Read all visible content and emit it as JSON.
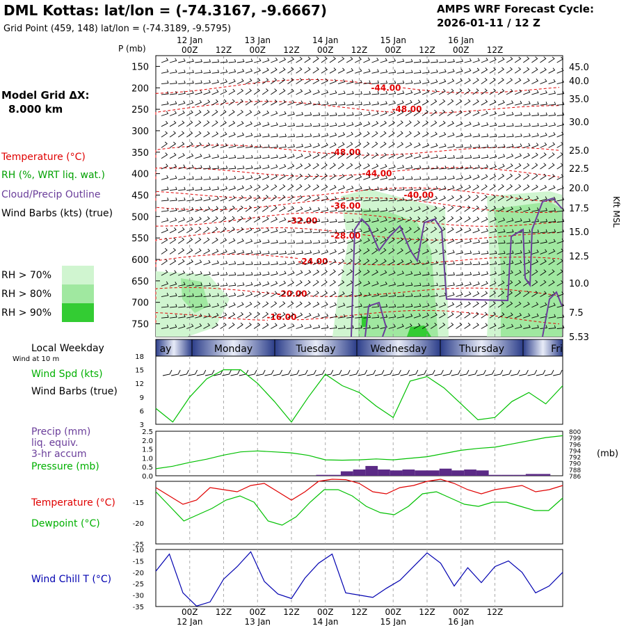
{
  "header": {
    "station_title": "DML Kottas:  lat/lon = (-74.3167, -9.6667)",
    "grid_point": "Grid Point (459, 148) lat/lon = (-74.3189, -9.5795)",
    "forecast_line1": "AMPS WRF Forecast Cycle:",
    "forecast_line2": "2026-01-11 / 12  Z"
  },
  "left_panel": {
    "model_grid_label": "Model Grid ΔX:",
    "model_grid_value": "8.000 km",
    "temperature_label": "Temperature (°C)",
    "rh_label": "RH (%, WRT liq. wat.)",
    "cloud_label": "Cloud/Precip Outline",
    "windbarb_label": "Wind Barbs (kts) (true)",
    "rh_legend": [
      "RH > 70%",
      "RH > 80%",
      "RH > 90%"
    ],
    "local_weekday_label": "Local Weekday",
    "wind_10m_label": "Wind at 10 m",
    "wind_spd_label": "Wind Spd (kts)",
    "wind_barbs_label": "Wind Barbs (true)",
    "precip_label_1": "Precip (mm)",
    "precip_label_2": "liq. equiv.",
    "precip_label_3": "3-hr accum",
    "pressure_label": "Pressure (mb)",
    "temp_label": "Temperature (°C)",
    "dewpoint_label": "Dewpoint (°C)",
    "windchill_label": "Wind Chill T (°C)"
  },
  "colors": {
    "temperature": "#e00000",
    "dewpoint": "#00c000",
    "rh": "#00b000",
    "cloud": "#6a3d9a",
    "windchill": "#0000b0",
    "precip": "#5b2a86",
    "rh70": "#d0f5d0",
    "rh80": "#a0e8a0",
    "rh90": "#33cc33"
  },
  "chart_data": [
    {
      "type": "cross-section",
      "title": "Vertical time section",
      "ylabel": "P (mb)",
      "y2label": "Kft MSL",
      "pressure_ticks": [
        150,
        200,
        250,
        300,
        350,
        400,
        450,
        500,
        550,
        600,
        650,
        700,
        750
      ],
      "kft_ticks": [
        "45.0",
        "40.0",
        "35.0",
        "30.0",
        "25.0",
        "22.5",
        "20.0",
        "17.5",
        "15.0",
        "12.5",
        "10.0",
        "7.5",
        "5.53"
      ],
      "top_time_ticks": [
        "00Z",
        "12Z",
        "00Z",
        "12Z",
        "00Z",
        "12Z",
        "00Z",
        "12Z",
        "00Z",
        "12Z"
      ],
      "top_date_labels": [
        "12 Jan",
        "13 Jan",
        "14 Jan",
        "15 Jan",
        "16 Jan"
      ],
      "plabel": "P (mb)",
      "temperature_contours": [
        {
          "label": "-44.00",
          "p": 200
        },
        {
          "label": "-48.00",
          "p": 250
        },
        {
          "label": "-48.00",
          "p": 350
        },
        {
          "label": "-44.00",
          "p": 400
        },
        {
          "label": "-40.00",
          "p": 450
        },
        {
          "label": "-36.00",
          "p": 475
        },
        {
          "label": "-32.00",
          "p": 510
        },
        {
          "label": "-28.00",
          "p": 545
        },
        {
          "label": "-24.00",
          "p": 605
        },
        {
          "label": "-20.00",
          "p": 680
        },
        {
          "label": "-16.00",
          "p": 735
        }
      ]
    },
    {
      "type": "line",
      "title": "Wind Spd (kts)",
      "ylim": [
        3,
        18
      ],
      "yticks": [
        "18",
        "15",
        "12",
        "9",
        "6",
        "3"
      ],
      "x_hours": [
        0,
        6,
        12,
        18,
        24,
        30,
        36,
        42,
        48,
        54,
        60,
        66,
        72,
        78,
        84,
        90,
        96,
        102,
        108,
        114,
        120,
        126,
        132,
        138,
        144
      ],
      "values": [
        6.5,
        3.5,
        9,
        13,
        15,
        15,
        12,
        8,
        3.5,
        9,
        14,
        11.5,
        10,
        7,
        4.5,
        12.5,
        13.5,
        11,
        7.5,
        4,
        4.5,
        8,
        10,
        7.5,
        11.5
      ],
      "weekdays": [
        "ay",
        "Monday",
        "Tuesday",
        "Wednesday",
        "Thursday",
        "Fri"
      ]
    },
    {
      "type": "bar+line",
      "title": "Precip / Pressure",
      "precip_ylim": [
        0,
        2.5
      ],
      "precip_ticks": [
        "2.5",
        "2.0",
        "1.5",
        "1.0",
        "0.5",
        "0.0"
      ],
      "pressure_ticks": [
        "800",
        "799",
        "796",
        "794",
        "792",
        "790",
        "788",
        "786"
      ],
      "pressure_unit": "(mb)",
      "precip_values": [
        0,
        0,
        0,
        0,
        0,
        0,
        0,
        0,
        0,
        0,
        0,
        0,
        0,
        0.05,
        0.05,
        0.25,
        0.35,
        0.55,
        0.35,
        0.3,
        0.35,
        0.3,
        0.3,
        0.4,
        0.3,
        0.35,
        0.3,
        0.05,
        0.05,
        0.05,
        0.1,
        0.1,
        0
      ],
      "pressure_values": [
        788.2,
        789,
        790.2,
        791.2,
        792.5,
        793.5,
        793.8,
        793.5,
        793.2,
        792.4,
        791,
        790.9,
        791,
        791.3,
        791,
        791.5,
        792,
        793,
        794,
        794.6,
        795,
        796,
        797,
        798,
        798.6
      ]
    },
    {
      "type": "line",
      "title": "Temperature / Dewpoint",
      "ylim": [
        -25,
        -10
      ],
      "yticks": [
        "-15",
        "-20",
        "-25"
      ],
      "temperature": [
        -11.5,
        -13.5,
        -15.5,
        -14.5,
        -11.5,
        -12,
        -12.5,
        -11,
        -10.5,
        -12.5,
        -14.5,
        -12.5,
        -10,
        -9.5,
        -9.6,
        -10.5,
        -12.5,
        -13,
        -11.5,
        -11,
        -10,
        -9.5,
        -10.5,
        -12,
        -13,
        -12,
        -11.5,
        -11,
        -12.5,
        -12,
        -11
      ],
      "dewpoint": [
        -12.5,
        -16,
        -19.5,
        -18,
        -16.5,
        -14.5,
        -13.5,
        -15,
        -19.5,
        -20.5,
        -18.5,
        -15,
        -12,
        -12,
        -13.5,
        -16,
        -17.5,
        -18,
        -16,
        -13,
        -12.5,
        -14,
        -15.5,
        -16,
        -15,
        -15,
        -16,
        -17,
        -17,
        -14
      ]
    },
    {
      "type": "line",
      "title": "Wind Chill T (°C)",
      "ylim": [
        -35,
        -10
      ],
      "yticks": [
        "-10",
        "-15",
        "-20",
        "-25",
        "-30",
        "-35"
      ],
      "values": [
        -19.5,
        -12,
        -29,
        -34.8,
        -33,
        -23,
        -17.5,
        -11,
        -24,
        -29.5,
        -31.5,
        -22.5,
        -16,
        -12,
        -29,
        -30,
        -31,
        -27,
        -23.5,
        -17.5,
        -11.5,
        -16,
        -26,
        -18,
        -24.5,
        -17.5,
        -15,
        -20,
        -29,
        -26,
        -20
      ]
    },
    {
      "type": "axis",
      "bottom_time_ticks": [
        "00Z",
        "12Z",
        "00Z",
        "12Z",
        "00Z",
        "12Z",
        "00Z",
        "12Z",
        "00Z",
        "12Z"
      ],
      "bottom_date_labels": [
        "12 Jan",
        "13 Jan",
        "14 Jan",
        "15 Jan",
        "16 Jan"
      ]
    }
  ]
}
